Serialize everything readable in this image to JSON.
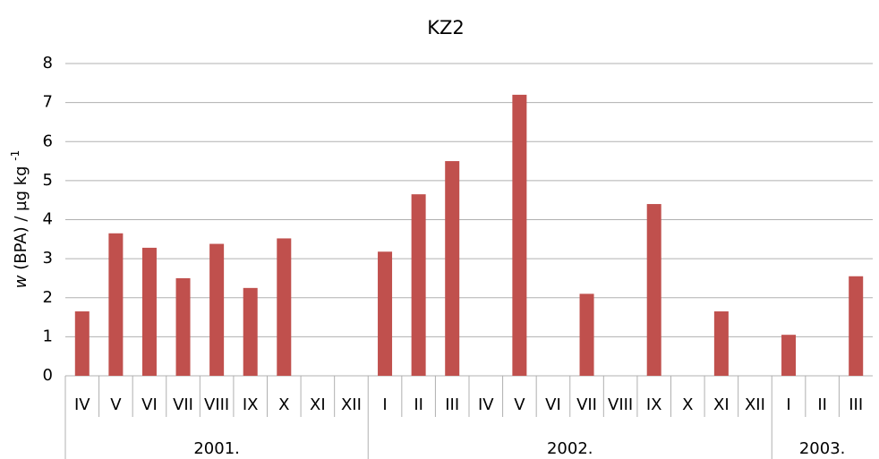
{
  "chart_data": {
    "type": "bar",
    "title": "KZ2",
    "y_label": {
      "variable": "w",
      "text": " (BPA) / µg kg ",
      "exponent": "-1"
    },
    "groups": [
      {
        "name": "2001.",
        "categories": [
          "IV",
          "V",
          "VI",
          "VII",
          "VIII",
          "IX",
          "X",
          "XI",
          "XII"
        ]
      },
      {
        "name": "2002.",
        "categories": [
          "I",
          "II",
          "III",
          "IV",
          "V",
          "VI",
          "VII",
          "VIII",
          "IX",
          "X",
          "XI",
          "XII"
        ]
      },
      {
        "name": "2003.",
        "categories": [
          "I",
          "II",
          "III"
        ]
      }
    ],
    "values": [
      1.65,
      3.65,
      3.28,
      2.5,
      3.38,
      2.25,
      3.52,
      null,
      null,
      3.18,
      4.65,
      5.5,
      null,
      7.2,
      null,
      2.1,
      null,
      4.4,
      null,
      1.65,
      null,
      1.05,
      null,
      2.55
    ],
    "color": "#c0504d",
    "ylim": [
      0,
      8
    ],
    "yticks": [
      0,
      1,
      2,
      3,
      4,
      5,
      6,
      7,
      8
    ],
    "grid": true
  }
}
